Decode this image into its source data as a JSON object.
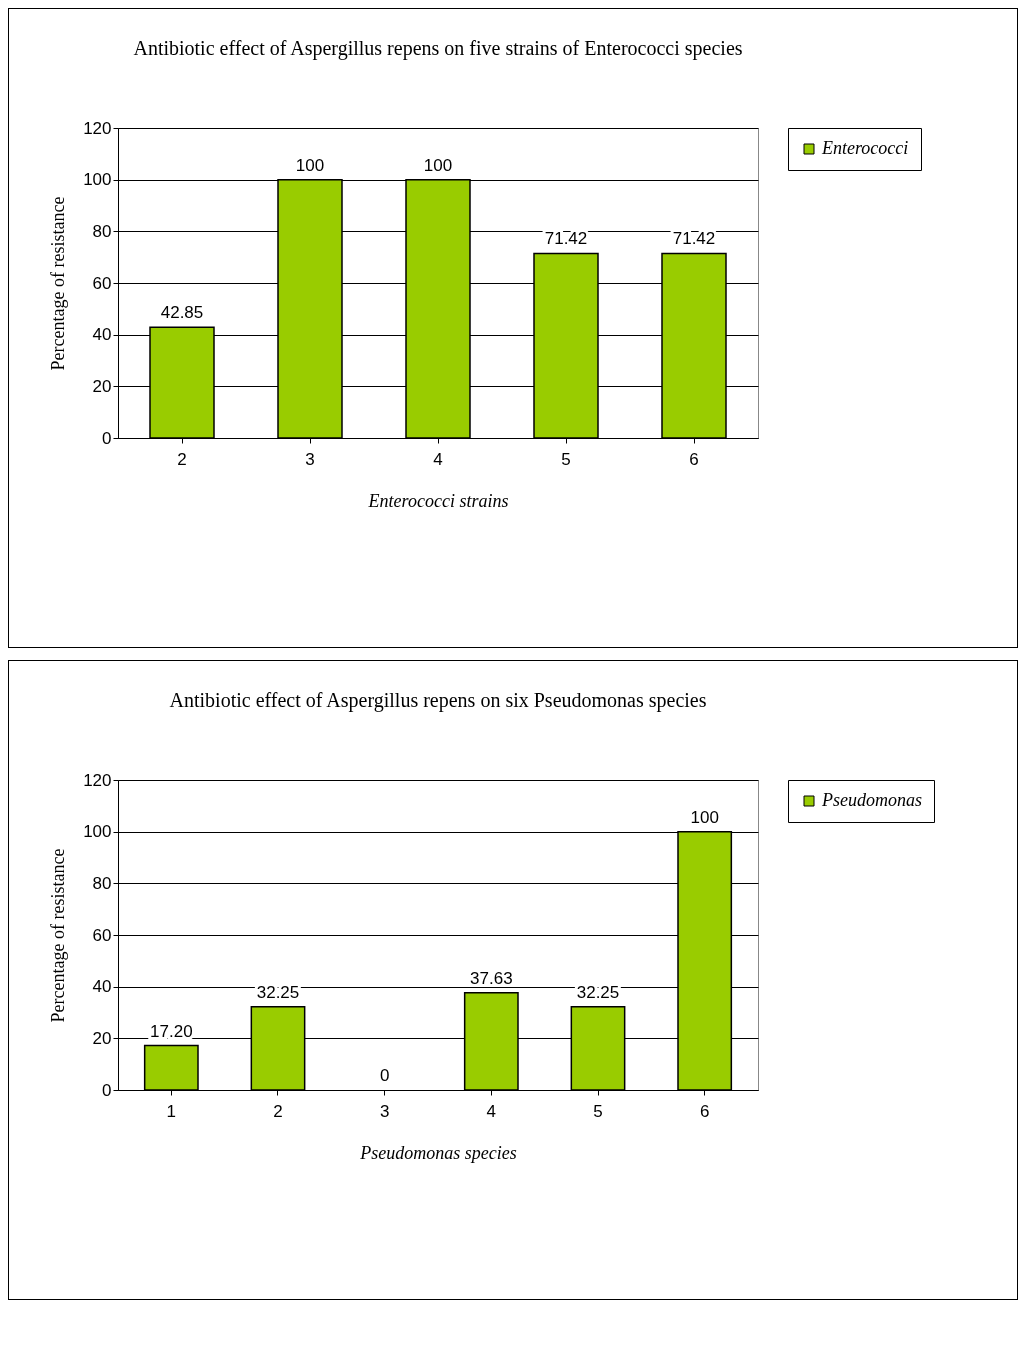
{
  "chart_data": [
    {
      "type": "bar",
      "title": "Antibiotic effect of Aspergillus repens on five strains of Enterococci species",
      "xlabel": "Enterococci strains",
      "ylabel": "Percentage of resistance",
      "categories": [
        "2",
        "3",
        "4",
        "5",
        "6"
      ],
      "series": [
        {
          "name": "Enterococci",
          "color": "#99cc00",
          "values": [
            42.85,
            100,
            100,
            71.42,
            71.42
          ]
        }
      ],
      "ylim": [
        0,
        120
      ],
      "yticks": [
        0,
        20,
        40,
        60,
        80,
        100,
        120
      ],
      "grid": "y",
      "legend": "right",
      "data_labels": true
    },
    {
      "type": "bar",
      "title": "Antibiotic effect of Aspergillus repens on six Pseudomonas species",
      "xlabel": "Pseudomonas species",
      "ylabel": "Percentage of resistance",
      "categories": [
        "1",
        "2",
        "3",
        "4",
        "5",
        "6"
      ],
      "series": [
        {
          "name": "Pseudomonas",
          "color": "#99cc00",
          "values": [
            17.2,
            32.25,
            0,
            37.63,
            32.25,
            100
          ],
          "value_labels": [
            "17.20",
            "32.25",
            "0",
            "37.63",
            "32.25",
            "100"
          ]
        }
      ],
      "ylim": [
        0,
        120
      ],
      "yticks": [
        0,
        20,
        40,
        60,
        80,
        100,
        120
      ],
      "grid": "y",
      "legend": "right"
    }
  ]
}
